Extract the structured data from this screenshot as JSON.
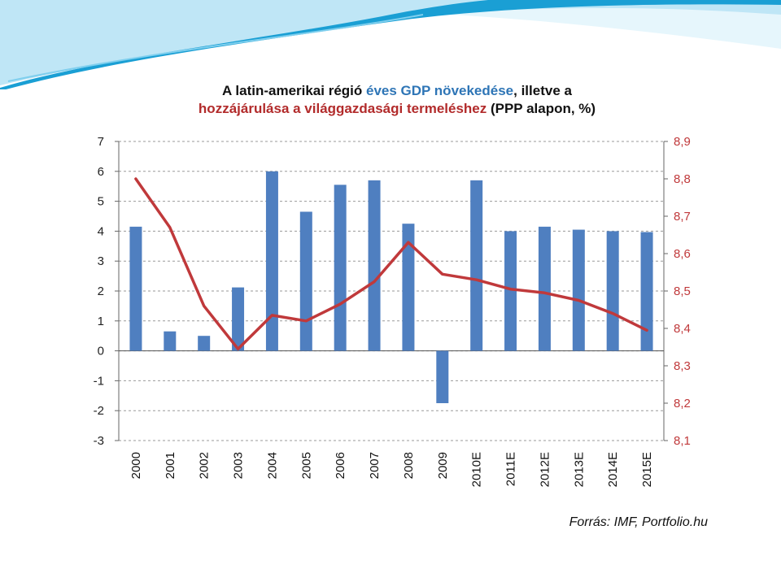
{
  "title": {
    "line1": [
      {
        "text": "A latin-amerikai régió ",
        "style": "plain"
      },
      {
        "text": "éves GDP növekedése",
        "style": "blue"
      },
      {
        "text": ", illetve a",
        "style": "plain"
      }
    ],
    "line2": [
      {
        "text": "hozzájárulása a világgazdasági termeléshez",
        "style": "red"
      },
      {
        "text": " (PPP alapon, %)",
        "style": "plain"
      }
    ]
  },
  "source": "Forrás: IMF, Portfolio.hu",
  "colors": {
    "bars": "#4f7fc0",
    "line": "#c0393b",
    "right_axis_text": "#c0393b",
    "grid": "#9a9a9a",
    "title_blue": "#2e75b6",
    "title_red": "#b22b2b",
    "deco_dark": "#1a9fd4",
    "deco_light": "#bfe6f6"
  },
  "chart_data": {
    "type": "bar",
    "categories": [
      "2000",
      "2001",
      "2002",
      "2003",
      "2004",
      "2005",
      "2006",
      "2007",
      "2008",
      "2009",
      "2010E",
      "2011E",
      "2012E",
      "2013E",
      "2014E",
      "2015E"
    ],
    "series": [
      {
        "type": "bar",
        "axis": "left",
        "values": [
          4.15,
          0.65,
          0.5,
          2.12,
          6.0,
          4.65,
          5.55,
          5.7,
          4.25,
          -1.75,
          5.7,
          4.0,
          4.15,
          4.05,
          4.0,
          3.97
        ]
      },
      {
        "type": "line",
        "axis": "right",
        "values": [
          8.8,
          8.67,
          8.46,
          8.345,
          8.435,
          8.42,
          8.465,
          8.525,
          8.63,
          8.545,
          8.53,
          8.505,
          8.495,
          8.475,
          8.44,
          8.395
        ]
      }
    ],
    "left_axis": {
      "ylim": [
        -3,
        7
      ],
      "ticks": [
        "7",
        "6",
        "5",
        "4",
        "3",
        "2",
        "1",
        "0",
        "-1",
        "-2",
        "-3"
      ]
    },
    "right_axis": {
      "ylim": [
        8.1,
        8.9
      ],
      "ticks": [
        "8,9",
        "8,8",
        "8,7",
        "8,6",
        "8,5",
        "8,4",
        "8,3",
        "8,2",
        "8,1"
      ]
    },
    "grid": true,
    "legend": "none"
  }
}
